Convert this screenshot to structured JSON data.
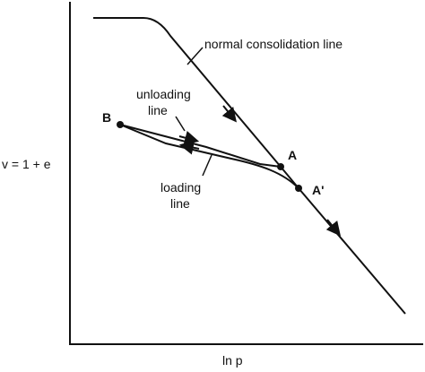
{
  "diagram": {
    "y_axis_label": "v = 1 + e",
    "x_axis_label": "ln p",
    "curve_labels": {
      "normal_consolidation": "normal consolidation line",
      "unloading_line1": "unloading",
      "unloading_line2": "line",
      "loading_line1": "loading",
      "loading_line2": "line"
    },
    "points": {
      "A": "A",
      "A_prime": "A'",
      "B": "B"
    },
    "colors": {
      "ink": "#111111",
      "background": "#ffffff"
    }
  }
}
